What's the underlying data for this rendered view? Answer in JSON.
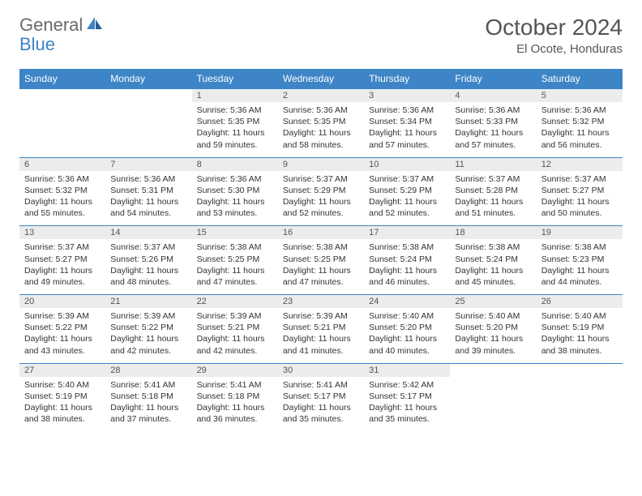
{
  "logo": {
    "part1": "General",
    "part2": "Blue"
  },
  "title": "October 2024",
  "location": "El Ocote, Honduras",
  "colors": {
    "header_bg": "#3d85c6",
    "header_text": "#ffffff",
    "daynum_bg": "#ececec",
    "border": "#3d85c6",
    "body_text": "#333333",
    "title_text": "#555555",
    "logo_gray": "#6b6b6b",
    "logo_blue": "#3d85c6"
  },
  "weekdays": [
    "Sunday",
    "Monday",
    "Tuesday",
    "Wednesday",
    "Thursday",
    "Friday",
    "Saturday"
  ],
  "weeks": [
    [
      null,
      null,
      {
        "n": "1",
        "sr": "5:36 AM",
        "ss": "5:35 PM",
        "dl": "11 hours and 59 minutes."
      },
      {
        "n": "2",
        "sr": "5:36 AM",
        "ss": "5:35 PM",
        "dl": "11 hours and 58 minutes."
      },
      {
        "n": "3",
        "sr": "5:36 AM",
        "ss": "5:34 PM",
        "dl": "11 hours and 57 minutes."
      },
      {
        "n": "4",
        "sr": "5:36 AM",
        "ss": "5:33 PM",
        "dl": "11 hours and 57 minutes."
      },
      {
        "n": "5",
        "sr": "5:36 AM",
        "ss": "5:32 PM",
        "dl": "11 hours and 56 minutes."
      }
    ],
    [
      {
        "n": "6",
        "sr": "5:36 AM",
        "ss": "5:32 PM",
        "dl": "11 hours and 55 minutes."
      },
      {
        "n": "7",
        "sr": "5:36 AM",
        "ss": "5:31 PM",
        "dl": "11 hours and 54 minutes."
      },
      {
        "n": "8",
        "sr": "5:36 AM",
        "ss": "5:30 PM",
        "dl": "11 hours and 53 minutes."
      },
      {
        "n": "9",
        "sr": "5:37 AM",
        "ss": "5:29 PM",
        "dl": "11 hours and 52 minutes."
      },
      {
        "n": "10",
        "sr": "5:37 AM",
        "ss": "5:29 PM",
        "dl": "11 hours and 52 minutes."
      },
      {
        "n": "11",
        "sr": "5:37 AM",
        "ss": "5:28 PM",
        "dl": "11 hours and 51 minutes."
      },
      {
        "n": "12",
        "sr": "5:37 AM",
        "ss": "5:27 PM",
        "dl": "11 hours and 50 minutes."
      }
    ],
    [
      {
        "n": "13",
        "sr": "5:37 AM",
        "ss": "5:27 PM",
        "dl": "11 hours and 49 minutes."
      },
      {
        "n": "14",
        "sr": "5:37 AM",
        "ss": "5:26 PM",
        "dl": "11 hours and 48 minutes."
      },
      {
        "n": "15",
        "sr": "5:38 AM",
        "ss": "5:25 PM",
        "dl": "11 hours and 47 minutes."
      },
      {
        "n": "16",
        "sr": "5:38 AM",
        "ss": "5:25 PM",
        "dl": "11 hours and 47 minutes."
      },
      {
        "n": "17",
        "sr": "5:38 AM",
        "ss": "5:24 PM",
        "dl": "11 hours and 46 minutes."
      },
      {
        "n": "18",
        "sr": "5:38 AM",
        "ss": "5:24 PM",
        "dl": "11 hours and 45 minutes."
      },
      {
        "n": "19",
        "sr": "5:38 AM",
        "ss": "5:23 PM",
        "dl": "11 hours and 44 minutes."
      }
    ],
    [
      {
        "n": "20",
        "sr": "5:39 AM",
        "ss": "5:22 PM",
        "dl": "11 hours and 43 minutes."
      },
      {
        "n": "21",
        "sr": "5:39 AM",
        "ss": "5:22 PM",
        "dl": "11 hours and 42 minutes."
      },
      {
        "n": "22",
        "sr": "5:39 AM",
        "ss": "5:21 PM",
        "dl": "11 hours and 42 minutes."
      },
      {
        "n": "23",
        "sr": "5:39 AM",
        "ss": "5:21 PM",
        "dl": "11 hours and 41 minutes."
      },
      {
        "n": "24",
        "sr": "5:40 AM",
        "ss": "5:20 PM",
        "dl": "11 hours and 40 minutes."
      },
      {
        "n": "25",
        "sr": "5:40 AM",
        "ss": "5:20 PM",
        "dl": "11 hours and 39 minutes."
      },
      {
        "n": "26",
        "sr": "5:40 AM",
        "ss": "5:19 PM",
        "dl": "11 hours and 38 minutes."
      }
    ],
    [
      {
        "n": "27",
        "sr": "5:40 AM",
        "ss": "5:19 PM",
        "dl": "11 hours and 38 minutes."
      },
      {
        "n": "28",
        "sr": "5:41 AM",
        "ss": "5:18 PM",
        "dl": "11 hours and 37 minutes."
      },
      {
        "n": "29",
        "sr": "5:41 AM",
        "ss": "5:18 PM",
        "dl": "11 hours and 36 minutes."
      },
      {
        "n": "30",
        "sr": "5:41 AM",
        "ss": "5:17 PM",
        "dl": "11 hours and 35 minutes."
      },
      {
        "n": "31",
        "sr": "5:42 AM",
        "ss": "5:17 PM",
        "dl": "11 hours and 35 minutes."
      },
      null,
      null
    ]
  ],
  "labels": {
    "sunrise": "Sunrise:",
    "sunset": "Sunset:",
    "daylight": "Daylight:"
  }
}
